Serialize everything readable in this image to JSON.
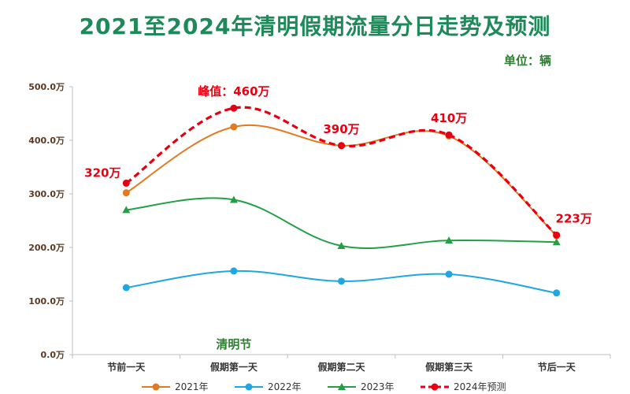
{
  "header": {
    "title": "2021至2024年清明假期流量分日走势及预测",
    "unit": "单位：辆"
  },
  "chart_data": {
    "type": "line",
    "title": "2021至2024年清明假期流量分日走势及预测",
    "xlabel": "清明节",
    "ylabel": "",
    "categories": [
      "节前一天",
      "假期第一天",
      "假期第二天",
      "假期第三天",
      "节后一天"
    ],
    "ylim": [
      0,
      500
    ],
    "yticks": [
      0,
      100,
      200,
      300,
      400,
      500
    ],
    "ytick_labels": [
      "0.0万",
      "100.0万",
      "200.0万",
      "300.0万",
      "400.0万",
      "500.0万"
    ],
    "grid": false,
    "legend_position": "bottom",
    "series": [
      {
        "name": "2021年",
        "values": [
          302,
          425,
          390,
          408,
          222
        ],
        "color": "#e07b24",
        "marker": "circle",
        "dashed": false
      },
      {
        "name": "2022年",
        "values": [
          125,
          156,
          137,
          150,
          115
        ],
        "color": "#1ea7e1",
        "marker": "circle",
        "dashed": false
      },
      {
        "name": "2023年",
        "values": [
          270,
          289,
          203,
          213,
          210
        ],
        "color": "#23a046",
        "marker": "triangle",
        "dashed": false
      },
      {
        "name": "2024年预测",
        "values": [
          320,
          460,
          390,
          410,
          223
        ],
        "color": "#e60012",
        "marker": "circle",
        "dashed": true
      }
    ],
    "annotations": [
      {
        "category": "节前一天",
        "value": 320,
        "text": "320万"
      },
      {
        "category": "假期第一天",
        "value": 460,
        "text": "峰值：460万"
      },
      {
        "category": "假期第二天",
        "value": 390,
        "text": "390万"
      },
      {
        "category": "假期第三天",
        "value": 410,
        "text": "410万"
      },
      {
        "category": "节后一天",
        "value": 223,
        "text": "223万"
      }
    ]
  }
}
